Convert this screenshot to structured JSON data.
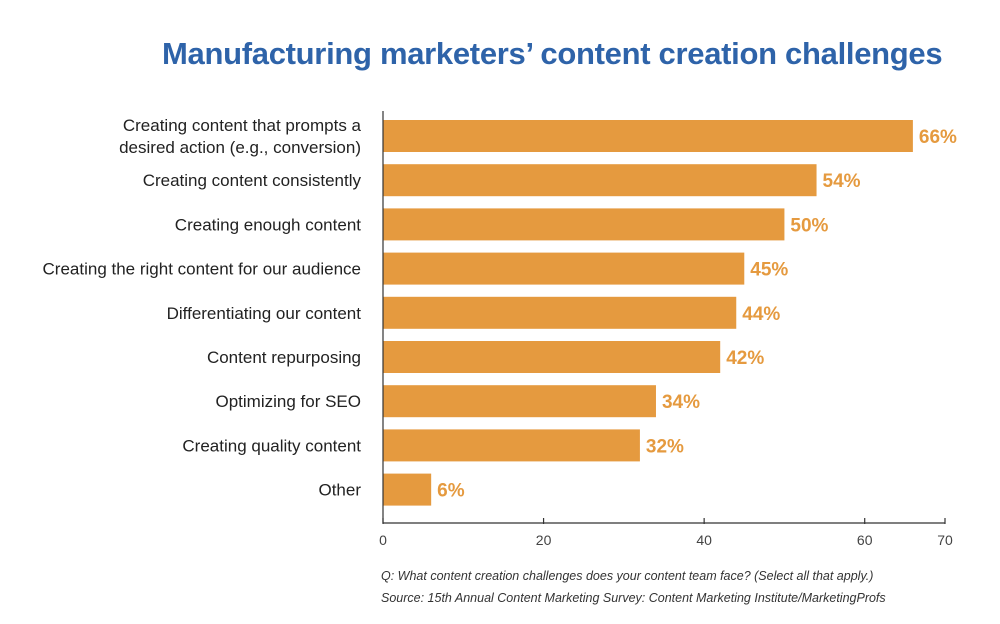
{
  "title": "Manufacturing marketers’ content creation challenges",
  "chart_data": {
    "type": "bar",
    "orientation": "horizontal",
    "title": "Manufacturing marketers’ content creation challenges",
    "categories": [
      "Creating content that prompts a desired action (e.g., conversion)",
      "Creating content consistently",
      "Creating enough content",
      "Creating the right content for our audience",
      "Differentiating our content",
      "Content repurposing",
      "Optimizing for SEO",
      "Creating quality content",
      "Other"
    ],
    "category_lines": [
      [
        "Creating content that prompts a",
        "desired action (e.g., conversion)"
      ],
      [
        "Creating content consistently"
      ],
      [
        "Creating enough content"
      ],
      [
        "Creating the right content for our audience"
      ],
      [
        "Differentiating our content"
      ],
      [
        "Content repurposing"
      ],
      [
        "Optimizing for SEO"
      ],
      [
        "Creating quality content"
      ],
      [
        "Other"
      ]
    ],
    "values": [
      66,
      54,
      50,
      45,
      44,
      42,
      34,
      32,
      6
    ],
    "data_labels": [
      "66%",
      "54%",
      "50%",
      "45%",
      "44%",
      "42%",
      "34%",
      "32%",
      "6%"
    ],
    "xlim": [
      0,
      70
    ],
    "xticks": [
      0,
      20,
      40,
      60,
      70
    ],
    "xlabel": "",
    "ylabel": "",
    "grid": false,
    "bar_color": "#e59a3f",
    "label_color": "#e59a3f"
  },
  "footnote": {
    "question": "Q: What content creation challenges does your content team face? (Select all that apply.)",
    "source": "Source: 15th Annual Content Marketing Survey: Content Marketing Institute/MarketingProfs"
  },
  "colors": {
    "title": "#2e63a9",
    "bar": "#e59a3f",
    "axis": "#333333",
    "text": "#222222"
  }
}
